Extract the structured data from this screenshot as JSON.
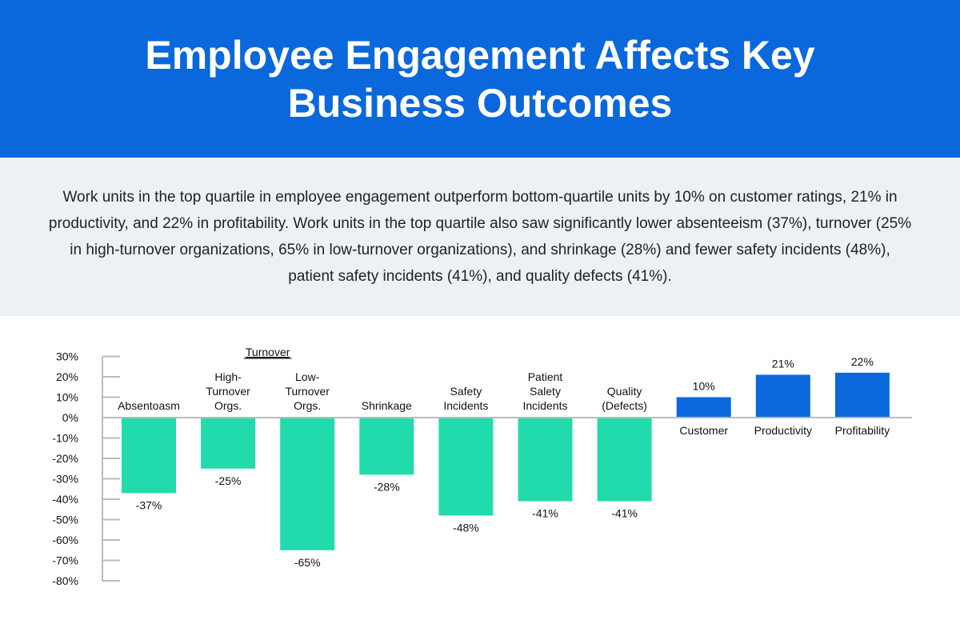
{
  "title": "Employee Engagement Affects Key Business Outcomes",
  "intro": "Work units in the top quartile in employee engagement outperform bottom-quartile units by 10% on customer ratings, 21% in productivity, and 22% in profitability. Work units in the top quartile also saw significantly lower absenteeism (37%), turnover (25% in high-turnover organizations, 65% in low-turnover organizations), and shrinkage (28%) and fewer safety incidents (48%), patient safety incidents (41%), and quality defects (41%).",
  "colors": {
    "header": "#0A68DC",
    "negative": "#22DBAD",
    "positive": "#0A68DC",
    "intro_bg": "#ECF1F4"
  },
  "chart_data": {
    "type": "bar",
    "group_label": "Turnover",
    "group_members": [
      1,
      2
    ],
    "categories": [
      [
        "Absentoasm"
      ],
      [
        "High-",
        "Turnover",
        "Orgs."
      ],
      [
        "Low-",
        "Turnover",
        "Orgs."
      ],
      [
        "Shrinkage"
      ],
      [
        "Safety",
        "Incidents"
      ],
      [
        "Patient",
        "Salety",
        "Incidents"
      ],
      [
        "Quality",
        "(Defects)"
      ],
      [
        "Customer"
      ],
      [
        "Productivity"
      ],
      [
        "Profitability"
      ]
    ],
    "values": [
      -37,
      -25,
      -65,
      -28,
      -48,
      -41,
      -41,
      10,
      21,
      22
    ],
    "value_labels": [
      "-37%",
      "-25%",
      "-65%",
      "-28%",
      "-48%",
      "-41%",
      "-41%",
      "10%",
      "21%",
      "22%"
    ],
    "ylim": [
      -80,
      30
    ],
    "yticks": [
      "30%",
      "20%",
      "10%",
      "0%",
      "-10%",
      "-20%",
      "-30%",
      "-40%",
      "-50%",
      "-60%",
      "-70%",
      "-80%"
    ],
    "ytick_values": [
      30,
      20,
      10,
      0,
      -10,
      -20,
      -30,
      -40,
      -50,
      -60,
      -70,
      -80
    ],
    "grid": false,
    "legend": "none"
  }
}
